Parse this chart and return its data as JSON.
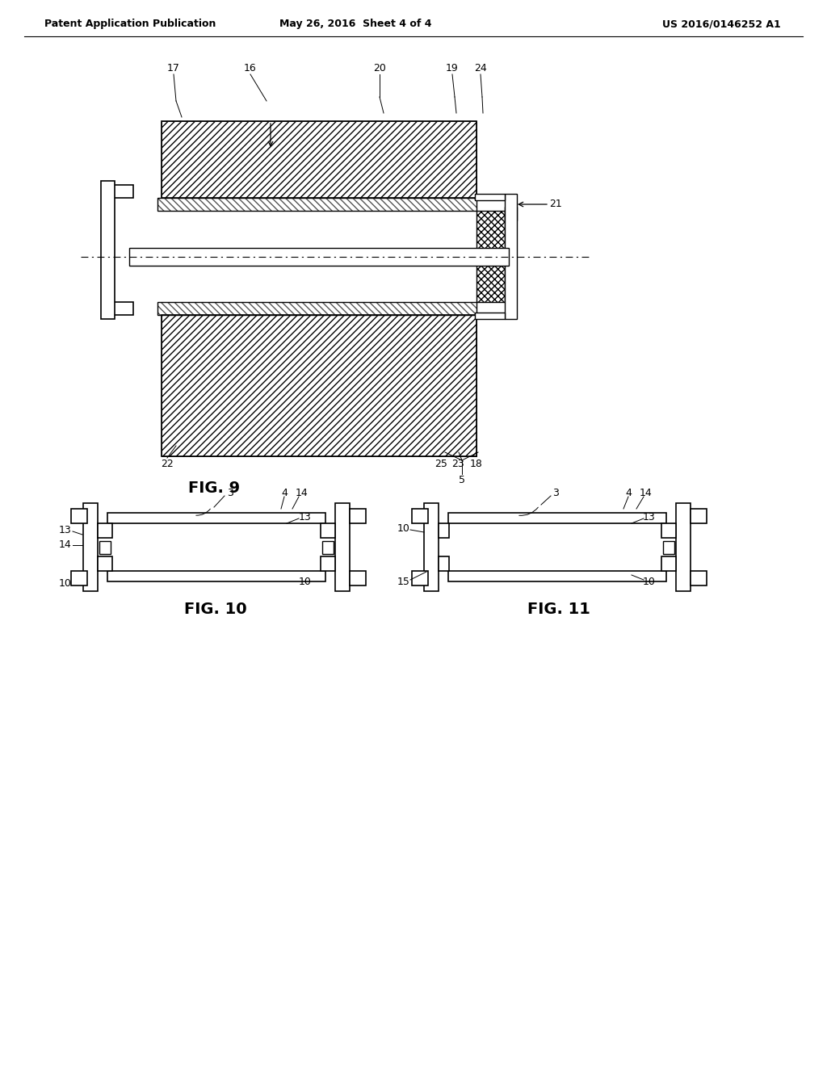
{
  "background_color": "#ffffff",
  "header_left": "Patent Application Publication",
  "header_mid": "May 26, 2016  Sheet 4 of 4",
  "header_right": "US 2016/0146252 A1",
  "fig9_label": "FIG. 9",
  "fig10_label": "FIG. 10",
  "fig11_label": "FIG. 11",
  "line_color": "#000000",
  "lw": 1.0,
  "lw2": 1.5
}
